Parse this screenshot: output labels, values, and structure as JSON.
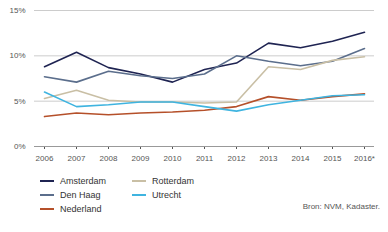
{
  "chart_data": {
    "type": "line",
    "x": [
      "2006",
      "2007",
      "2008",
      "2009",
      "2010",
      "2011",
      "2012",
      "2013",
      "2014",
      "2015",
      "2016*"
    ],
    "series": [
      {
        "name": "Amsterdam",
        "color": "#1f2452",
        "values": [
          8.8,
          10.4,
          8.7,
          8.0,
          7.1,
          8.5,
          9.2,
          11.4,
          10.9,
          11.6,
          12.6
        ]
      },
      {
        "name": "Den Haag",
        "color": "#5b6e8c",
        "values": [
          7.7,
          7.1,
          8.3,
          7.8,
          7.5,
          8.0,
          10.0,
          9.4,
          8.9,
          9.4,
          10.8
        ]
      },
      {
        "name": "Nederland",
        "color": "#b5502a",
        "values": [
          3.3,
          3.7,
          3.5,
          3.7,
          3.8,
          4.0,
          4.4,
          5.5,
          5.1,
          5.5,
          5.8
        ]
      },
      {
        "name": "Rotterdam",
        "color": "#c9bfa5",
        "values": [
          5.3,
          6.2,
          5.1,
          4.9,
          4.9,
          4.8,
          4.9,
          8.8,
          8.5,
          9.5,
          9.9
        ]
      },
      {
        "name": "Utrecht",
        "color": "#3fb4e0",
        "values": [
          6.0,
          4.4,
          4.6,
          4.9,
          4.9,
          4.4,
          3.9,
          4.6,
          5.1,
          5.6,
          5.7
        ]
      }
    ],
    "ylim": [
      0,
      15
    ],
    "yticks": [
      {
        "value": 0,
        "label": "0%"
      },
      {
        "value": 5,
        "label": "5%"
      },
      {
        "value": 10,
        "label": "10%"
      },
      {
        "value": 15,
        "label": "15%"
      }
    ],
    "grid": true,
    "legend": "bottom",
    "source": "Bron: NVM, Kadaster."
  }
}
